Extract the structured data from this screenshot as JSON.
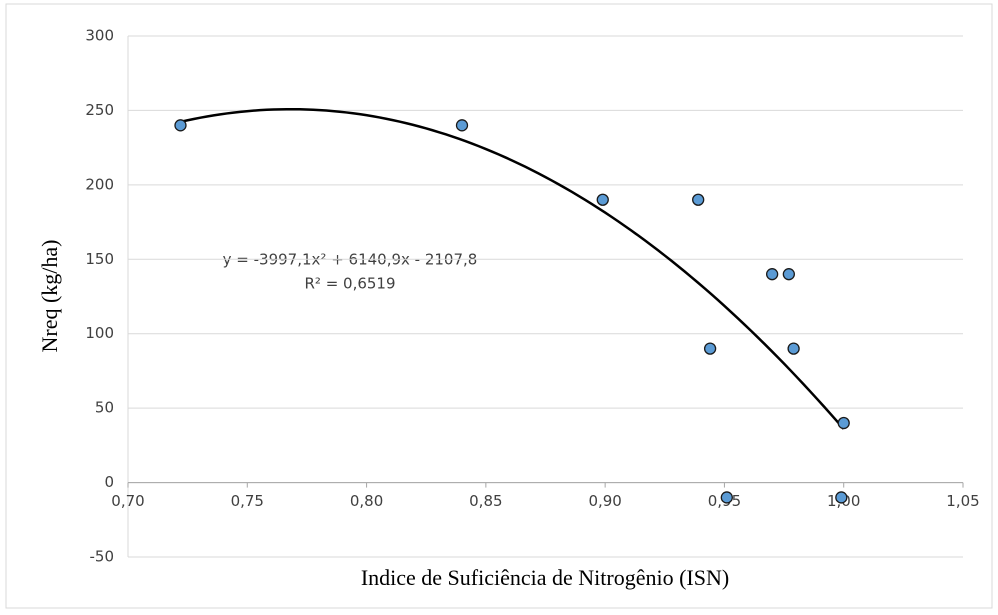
{
  "chart_data": {
    "type": "scatter",
    "x_label": "Indice de Suficiência de Nitrogênio (ISN)",
    "y_label": "Nreq (kg/ha)",
    "series": [
      {
        "color": "#5b9bd5",
        "x": [
          0.722,
          0.84,
          0.899,
          0.939,
          0.944,
          0.951,
          0.97,
          0.977,
          0.979,
          0.999,
          1.0
        ],
        "values": [
          240,
          240,
          190,
          190,
          90,
          -10,
          140,
          140,
          90,
          -10,
          40
        ]
      }
    ],
    "trendline": {
      "type": "polynomial",
      "color": "#000000",
      "coefficients": [
        -3997.1,
        6140.9,
        -2107.8
      ],
      "equation": "y = -3997,1x² + 6140,9x - 2107,8",
      "r_squared": "R² = 0,6519"
    },
    "xlim": [
      0.7,
      1.05
    ],
    "xticks": [
      {
        "value": 0.7,
        "label": "0,70"
      },
      {
        "value": 0.75,
        "label": "0,75"
      },
      {
        "value": 0.8,
        "label": "0,80"
      },
      {
        "value": 0.85,
        "label": "0,85"
      },
      {
        "value": 0.9,
        "label": "0,90"
      },
      {
        "value": 0.95,
        "label": "0,95"
      },
      {
        "value": 1.0,
        "label": "1,00"
      },
      {
        "value": 1.05,
        "label": "1,05"
      }
    ],
    "ylim": [
      -50,
      300
    ],
    "yticks": [
      -50,
      0,
      50,
      100,
      150,
      200,
      250,
      300
    ],
    "grid": true
  }
}
